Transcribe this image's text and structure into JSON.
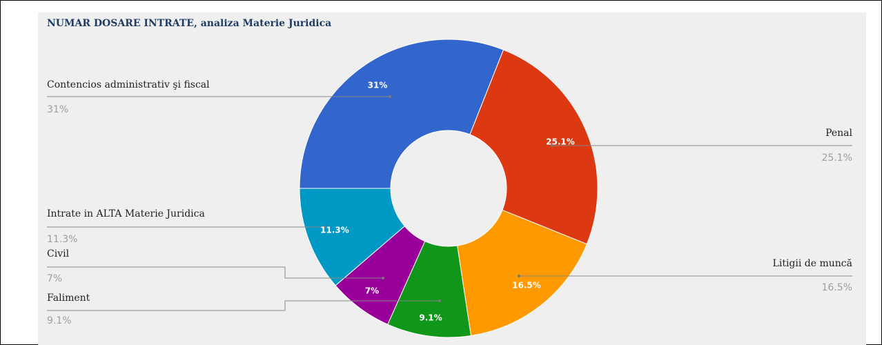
{
  "chart_data": {
    "type": "donut",
    "title": "NUMAR DOSARE INTRATE, analiza Materie Juridica",
    "categories": [
      "Contencios administrativ şi fiscal",
      "Penal",
      "Litigii de muncă",
      "Faliment",
      "Civil",
      "Intrate in ALTA Materie Juridica"
    ],
    "values": [
      31,
      25.1,
      16.5,
      9.1,
      7,
      11.3
    ],
    "value_labels": [
      "31%",
      "25.1%",
      "16.5%",
      "9.1%",
      "7%",
      "11.3%"
    ],
    "colors": [
      "#3366cc",
      "#dc3912",
      "#ff9900",
      "#109618",
      "#990099",
      "#0099c6"
    ]
  }
}
